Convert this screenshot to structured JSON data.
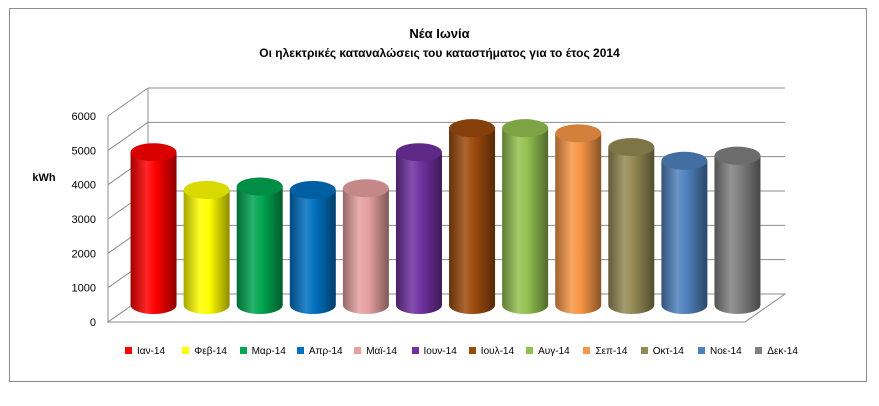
{
  "chart_data": {
    "type": "bar",
    "title": "Νέα Ιωνία",
    "subtitle": "Οι ηλεκτρικές καταναλώσεις του καταστήματος για το έτος 2014",
    "ylabel": "kWh",
    "xlabel": "",
    "ylim": [
      0,
      6000
    ],
    "yticks": [
      0,
      1000,
      2000,
      3000,
      4000,
      5000,
      6000
    ],
    "grid": true,
    "legend_position": "bottom",
    "categories": [
      "Ιαν-14",
      "Φεβ-14",
      "Μαρ-14",
      "Απρ-14",
      "Μαϊ-14",
      "Ιουν-14",
      "Ιουλ-14",
      "Αυγ-14",
      "Σεπ-14",
      "Οκτ-14",
      "Νοε-14",
      "Δεκ-14"
    ],
    "values": [
      4450,
      3350,
      3450,
      3350,
      3400,
      4450,
      5150,
      5150,
      5000,
      4600,
      4200,
      4350
    ],
    "colors": [
      "#ff0000",
      "#ffff00",
      "#00a651",
      "#0070c0",
      "#e6a0a0",
      "#7030a0",
      "#9c4a0c",
      "#92c050",
      "#f79646",
      "#948a54",
      "#4f81bd",
      "#808080"
    ]
  }
}
